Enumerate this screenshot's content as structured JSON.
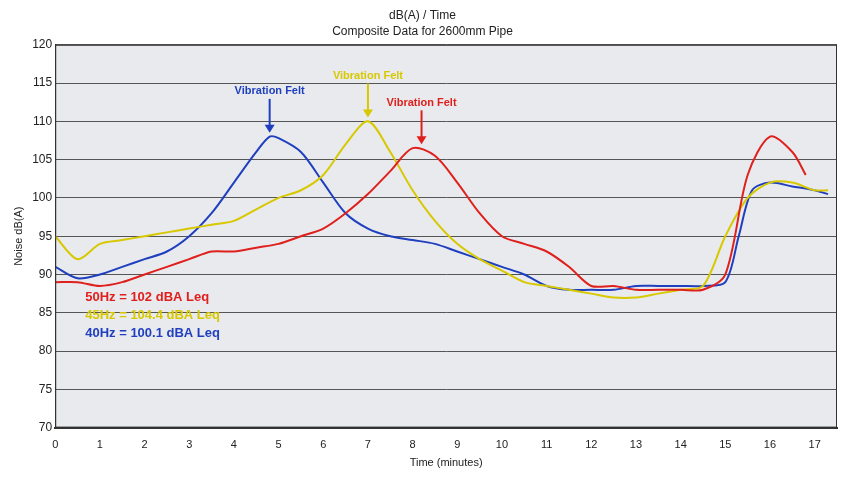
{
  "chart_data": {
    "type": "line",
    "title": "dB(A) / Time",
    "subtitle": "Composite Data for 2600mm Pipe",
    "x_label": "Time (minutes)",
    "y_label": "Noise dB(A)",
    "xlim": [
      0,
      17.5
    ],
    "xticks": [
      0,
      1,
      2,
      3,
      4,
      5,
      6,
      7,
      8,
      9,
      10,
      11,
      12,
      13,
      14,
      15,
      16,
      17
    ],
    "ylim": [
      70,
      120
    ],
    "yticks": [
      70,
      75,
      80,
      85,
      90,
      95,
      100,
      105,
      110,
      115,
      120
    ],
    "grid": true,
    "legend": "lower left",
    "series": [
      {
        "name": "50Hz = 102 dBA Leq",
        "color": "#e0201c",
        "x": [
          0,
          0.5,
          1,
          1.5,
          2,
          2.5,
          3,
          3.5,
          4,
          4.5,
          5,
          5.5,
          6,
          6.5,
          7,
          7.5,
          8,
          8.5,
          9,
          9.5,
          10,
          10.5,
          11,
          11.5,
          12,
          12.5,
          13,
          13.5,
          14,
          14.5,
          15,
          15.5,
          16,
          16.5,
          16.8
        ],
        "values": [
          89,
          89,
          88.5,
          89,
          90,
          91,
          92,
          93,
          93,
          93.5,
          94,
          95,
          96,
          98,
          100.5,
          103.5,
          106.5,
          105.5,
          102,
          98,
          95,
          94,
          93,
          91,
          88.5,
          88.5,
          88,
          88,
          88,
          88,
          90,
          103,
          108,
          106,
          103
        ]
      },
      {
        "name": "45Hz = 104.4 dBA Leq",
        "color": "#d8c800",
        "x": [
          0,
          0.5,
          1,
          1.5,
          2,
          2.5,
          3,
          3.5,
          4,
          4.5,
          5,
          5.5,
          6,
          6.5,
          7,
          7.5,
          8,
          8.5,
          9,
          9.5,
          10,
          10.5,
          11,
          11.5,
          12,
          12.5,
          13,
          13.5,
          14,
          14.5,
          15,
          15.5,
          16,
          16.5,
          17,
          17.3
        ],
        "values": [
          95,
          92,
          94,
          94.5,
          95,
          95.5,
          96,
          96.5,
          97,
          98.5,
          100,
          101,
          103,
          107,
          110,
          106,
          101,
          97,
          94,
          92,
          90.5,
          89,
          88.5,
          88,
          87.5,
          87,
          87,
          87.5,
          88,
          88.5,
          95,
          100,
          102,
          102,
          101,
          101
        ]
      },
      {
        "name": "40Hz = 100.1 dBA Leq",
        "color": "#1f3fbf",
        "x": [
          0,
          0.5,
          1,
          1.5,
          2,
          2.5,
          3,
          3.5,
          4,
          4.5,
          4.8,
          5,
          5.5,
          6,
          6.5,
          7,
          7.5,
          8,
          8.5,
          9,
          9.5,
          10,
          10.5,
          11,
          11.5,
          12,
          12.5,
          13,
          13.5,
          14,
          14.5,
          15,
          15.3,
          15.6,
          16,
          16.5,
          17,
          17.3
        ],
        "values": [
          91,
          89.5,
          90,
          91,
          92,
          93,
          95,
          98,
          102,
          106,
          108,
          107.8,
          106,
          102,
          98,
          96,
          95,
          94.5,
          94,
          93,
          92,
          91,
          90,
          88.5,
          88,
          88,
          88,
          88.5,
          88.5,
          88.5,
          88.5,
          89,
          95,
          101,
          102,
          101.5,
          101,
          100.5
        ]
      }
    ],
    "annotations": [
      {
        "text": "Vibration Felt",
        "x": 4.8,
        "y": 108.5,
        "color": "#1f3fbf"
      },
      {
        "text": "Vibration Felt",
        "x": 7,
        "y": 110.5,
        "color": "#d8c800"
      },
      {
        "text": "Vibration Felt",
        "x": 8.2,
        "y": 107,
        "color": "#e0201c"
      }
    ]
  }
}
